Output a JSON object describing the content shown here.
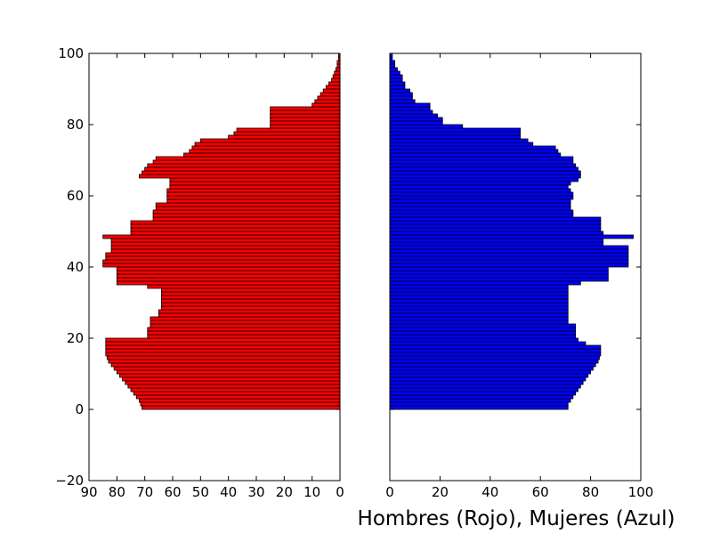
{
  "chart_data": {
    "type": "bar",
    "orientation": "horizontal",
    "xlabel": "Hombres (Rojo), Mujeres (Azul)",
    "y_values": [
      0,
      1,
      2,
      3,
      4,
      5,
      6,
      7,
      8,
      9,
      10,
      11,
      12,
      13,
      14,
      15,
      16,
      17,
      18,
      19,
      20,
      21,
      22,
      23,
      24,
      25,
      26,
      27,
      28,
      29,
      30,
      31,
      32,
      33,
      34,
      35,
      36,
      37,
      38,
      39,
      40,
      41,
      42,
      43,
      44,
      45,
      46,
      47,
      48,
      49,
      50,
      51,
      52,
      53,
      54,
      55,
      56,
      57,
      58,
      59,
      60,
      61,
      62,
      63,
      64,
      65,
      66,
      67,
      68,
      69,
      70,
      71,
      72,
      73,
      74,
      75,
      76,
      77,
      78,
      79,
      80,
      81,
      82,
      83,
      84,
      85,
      86,
      87,
      88,
      89,
      90,
      91,
      92,
      93,
      94,
      95,
      96,
      97,
      98,
      99
    ],
    "ylim": [
      -20,
      100
    ],
    "yticks": [
      "-20",
      "0",
      "20",
      "40",
      "60",
      "80",
      "100"
    ],
    "panels": [
      {
        "id": "men",
        "color": "#ff0000",
        "xlim": [
          90,
          0
        ],
        "xticks": [
          "90",
          "80",
          "70",
          "60",
          "50",
          "40",
          "30",
          "20",
          "10",
          "0"
        ],
        "values": [
          71,
          71,
          72,
          72,
          73,
          74,
          75,
          76,
          77,
          78,
          79,
          80,
          81,
          82,
          83,
          83,
          84,
          84,
          84,
          84,
          84,
          69,
          69,
          69,
          69,
          69,
          68,
          68,
          68,
          68,
          65,
          65,
          65,
          65,
          64,
          64,
          64,
          64,
          64,
          64,
          69,
          80,
          80,
          80,
          80,
          80,
          85,
          85,
          84,
          84,
          84,
          84,
          82,
          82,
          82,
          82,
          82,
          82,
          82,
          82,
          82,
          82,
          85,
          85,
          75,
          75,
          75,
          75,
          75,
          75,
          75,
          75,
          67,
          67,
          67,
          67,
          67,
          67,
          66,
          66,
          66,
          66,
          62,
          62,
          62,
          62,
          61,
          61,
          61,
          72,
          72,
          71,
          70,
          69,
          68,
          66,
          66,
          56,
          56,
          54,
          53,
          52,
          50,
          50,
          40,
          40,
          38,
          38,
          37,
          37,
          25,
          25,
          25,
          25,
          25,
          25,
          25,
          25,
          25,
          10,
          10,
          10,
          8,
          8,
          8,
          6,
          5,
          5,
          4,
          3,
          3,
          2,
          2,
          1,
          1,
          1,
          0
        ],
        "values_per_age": [
          71,
          71.5,
          72,
          73,
          74,
          75,
          76,
          77,
          78,
          79,
          80,
          81,
          82,
          83,
          83.5,
          84,
          84,
          84,
          84,
          84,
          69,
          69,
          69,
          68,
          68,
          68,
          65,
          65,
          64,
          64,
          64,
          64,
          64,
          64,
          69,
          80,
          80,
          80,
          80,
          80,
          85,
          85,
          84,
          84,
          82,
          82,
          82,
          82,
          85,
          75,
          75,
          75,
          75,
          67,
          67,
          67,
          66,
          66,
          62,
          62,
          62,
          62,
          61,
          61,
          61,
          72,
          71,
          70,
          69,
          67,
          66,
          56,
          54,
          53,
          52,
          50,
          40,
          38,
          37,
          25,
          25,
          25,
          25,
          25,
          25,
          10,
          9,
          8,
          7,
          6,
          5,
          4,
          3,
          2.5,
          2,
          1.5,
          1,
          1,
          0.5,
          0.5
        ]
      },
      {
        "id": "women",
        "color": "#0000ff",
        "xlim": [
          0,
          100
        ],
        "xticks": [
          "0",
          "20",
          "40",
          "60",
          "80",
          "100"
        ],
        "values_per_age": [
          71,
          71,
          72,
          73,
          74,
          75,
          76,
          77,
          78,
          79,
          80,
          81,
          82,
          83,
          83.5,
          84,
          84,
          84,
          78,
          75,
          74,
          74,
          74,
          74,
          71,
          71,
          71,
          71,
          71,
          71,
          71,
          71,
          71,
          71,
          71,
          76,
          87,
          87,
          87,
          87,
          95,
          95,
          95,
          95,
          95,
          95,
          85,
          85,
          97,
          85,
          84,
          84,
          84,
          84,
          73,
          73,
          72,
          72,
          72,
          73,
          73,
          72,
          71,
          72,
          75,
          76,
          76,
          75,
          74,
          73,
          73,
          68,
          67,
          66,
          57,
          55,
          52,
          52,
          52,
          29,
          21,
          21,
          19,
          17,
          16,
          16,
          10,
          9,
          9,
          8,
          6,
          6,
          5,
          5,
          4,
          3,
          2,
          2,
          1,
          1
        ]
      }
    ]
  }
}
